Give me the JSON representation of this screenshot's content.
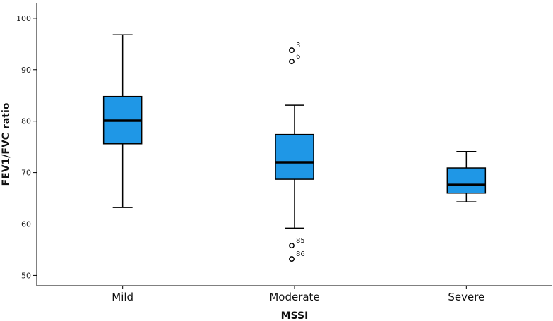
{
  "chart_data": {
    "type": "boxplot",
    "title": "",
    "xlabel": "MSSI",
    "ylabel": "FEV1/FVC ratio",
    "ylim": [
      48,
      103
    ],
    "yticks": [
      50,
      60,
      70,
      80,
      90,
      100
    ],
    "categories": [
      "Mild",
      "Moderate",
      "Severe"
    ],
    "box_color": "#1f97e6",
    "grid": false,
    "boxes": [
      {
        "category": "Mild",
        "whisker_low": 63.2,
        "q1": 75.6,
        "median": 80.1,
        "q3": 84.8,
        "whisker_high": 96.8,
        "outliers": []
      },
      {
        "category": "Moderate",
        "whisker_low": 59.2,
        "q1": 68.7,
        "median": 72.0,
        "q3": 77.4,
        "whisker_high": 83.1,
        "outliers": [
          {
            "value": 93.8,
            "label": "3"
          },
          {
            "value": 91.6,
            "label": "6"
          },
          {
            "value": 55.8,
            "label": "85"
          },
          {
            "value": 53.2,
            "label": "86"
          }
        ]
      },
      {
        "category": "Severe",
        "whisker_low": 64.3,
        "q1": 66.0,
        "median": 67.6,
        "q3": 70.9,
        "whisker_high": 74.1,
        "outliers": []
      }
    ]
  }
}
